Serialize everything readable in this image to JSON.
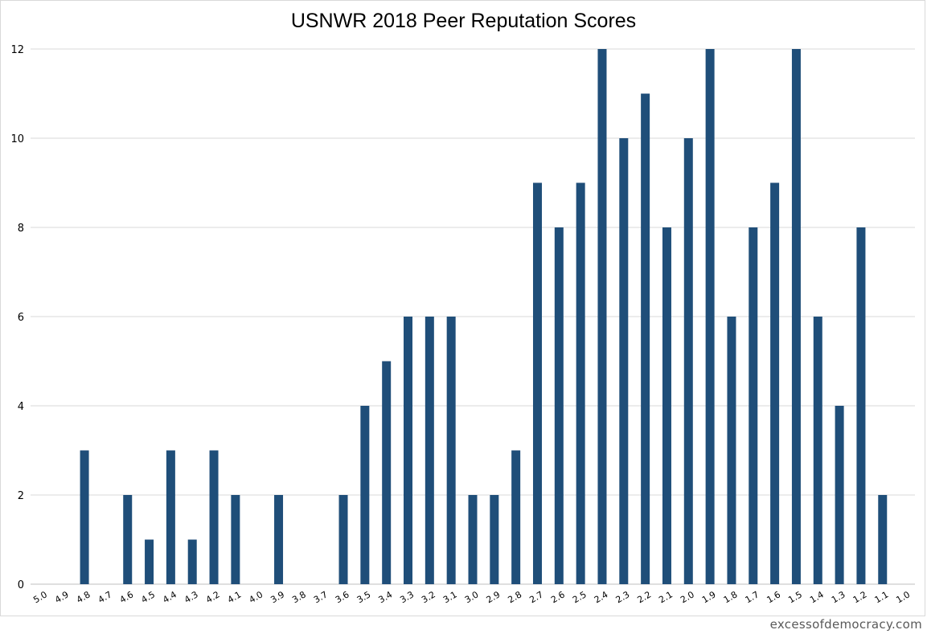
{
  "chart_data": {
    "type": "bar",
    "title": "USNWR 2018 Peer Reputation Scores",
    "xlabel": "",
    "ylabel": "",
    "ylim": [
      0,
      12
    ],
    "yticks": [
      0,
      2,
      4,
      6,
      8,
      10,
      12
    ],
    "grid": true,
    "legend": "none",
    "bar_color": "#1f4e79",
    "categories": [
      "5.0",
      "4.9",
      "4.8",
      "4.7",
      "4.6",
      "4.5",
      "4.4",
      "4.3",
      "4.2",
      "4.1",
      "4.0",
      "3.9",
      "3.8",
      "3.7",
      "3.6",
      "3.5",
      "3.4",
      "3.3",
      "3.2",
      "3.1",
      "3.0",
      "2.9",
      "2.8",
      "2.7",
      "2.6",
      "2.5",
      "2.4",
      "2.3",
      "2.2",
      "2.1",
      "2.0",
      "1.9",
      "1.8",
      "1.7",
      "1.6",
      "1.5",
      "1.4",
      "1.3",
      "1.2",
      "1.1",
      "1.0"
    ],
    "values": [
      0,
      0,
      3,
      0,
      2,
      1,
      3,
      1,
      3,
      2,
      0,
      2,
      0,
      0,
      2,
      4,
      5,
      6,
      6,
      6,
      2,
      2,
      3,
      9,
      8,
      9,
      12,
      10,
      11,
      8,
      10,
      12,
      6,
      8,
      9,
      12,
      6,
      4,
      8,
      2,
      0
    ]
  },
  "watermark": "excessofdemocracy.com"
}
